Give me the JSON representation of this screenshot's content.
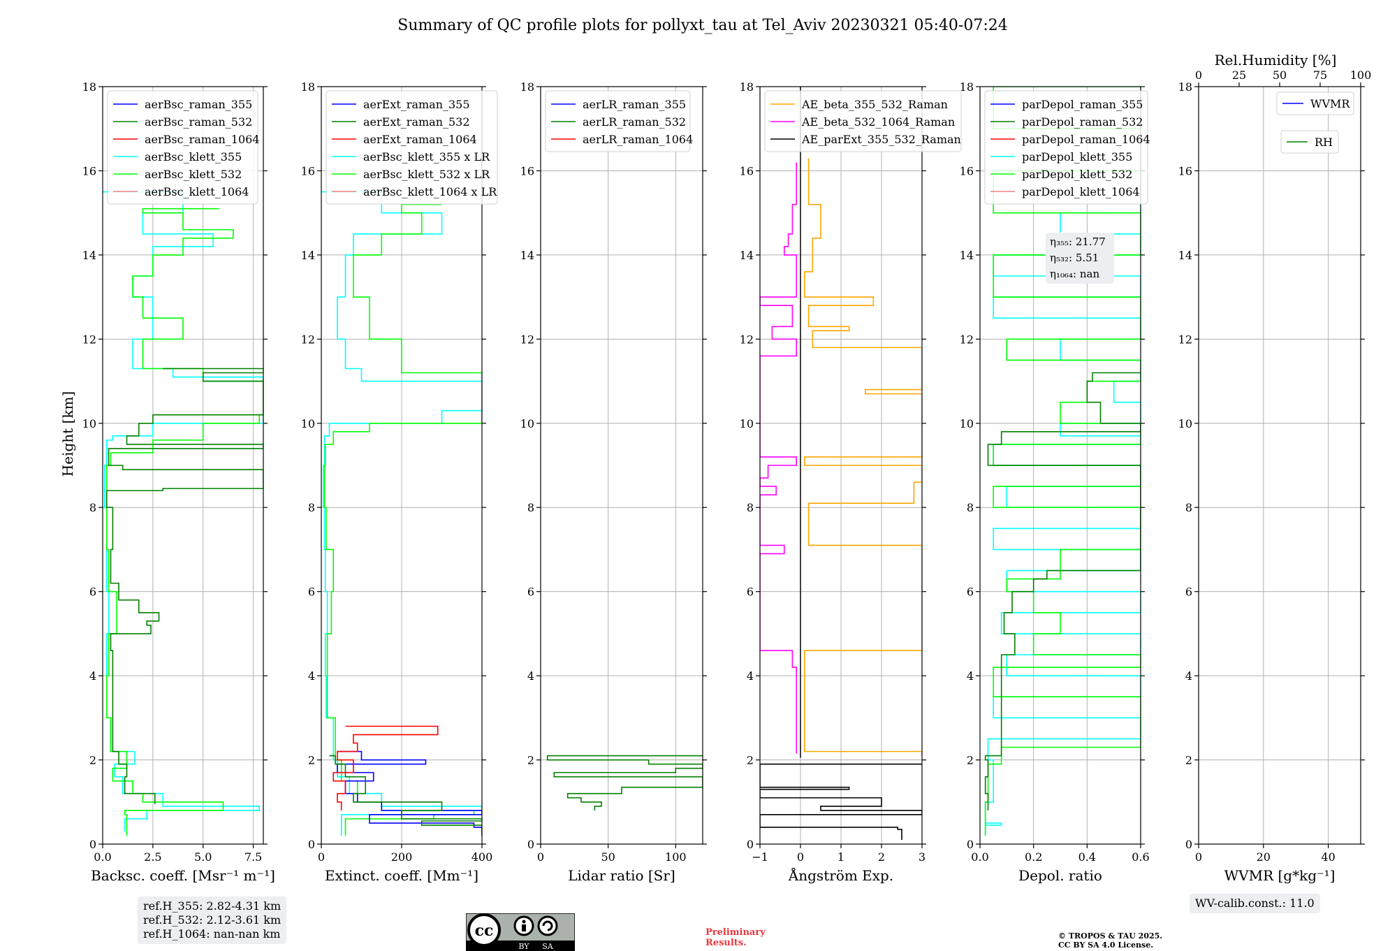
{
  "figure": {
    "title": "Summary of QC profile plots for pollyxt_tau at Tel_Aviv 20230321 05:40-07:24",
    "ylabel": "Height [km]",
    "ylim": [
      0,
      18
    ],
    "yticks": [
      0,
      2,
      4,
      6,
      8,
      10,
      12,
      14,
      16,
      18
    ]
  },
  "colors": {
    "blue": "#0000ff",
    "green": "#008000",
    "red": "#ff0000",
    "cyan": "#00ffff",
    "lime": "#00ff00",
    "salmon": "#f08080",
    "orange": "#ffa500",
    "magenta": "#ff00ff",
    "black": "#000000",
    "grid": "#b0b0b0"
  },
  "chart_data": [
    {
      "type": "line",
      "id": "bsc",
      "xlabel": "Backsc. coeff. [Msr⁻¹ m⁻¹]",
      "xlim": [
        0,
        8
      ],
      "xticks": [
        0,
        2.5,
        5,
        7.5
      ],
      "xticklabels": [
        "0.0",
        "2.5",
        "5.0",
        "7.5"
      ],
      "legend": [
        "aerBsc_raman_355",
        "aerBsc_raman_532",
        "aerBsc_raman_1064",
        "aerBsc_klett_355",
        "aerBsc_klett_532",
        "aerBsc_klett_1064"
      ],
      "legend_colors": [
        "blue",
        "green",
        "red",
        "cyan",
        "lime",
        "salmon"
      ],
      "series": [
        {
          "name": "aerBsc_klett_355",
          "color": "cyan",
          "h": [
            0.3,
            0.6,
            0.8,
            0.9,
            1.2,
            1.6,
            1.9,
            2.2,
            3,
            4,
            5,
            6,
            7,
            8,
            9,
            9.6,
            9.7,
            10,
            11.1,
            11.3,
            12,
            13,
            13.5,
            14.2,
            14.5,
            15,
            15.5
          ],
          "v": [
            1.1,
            2.2,
            7.8,
            3,
            1,
            0.6,
            1.6,
            0.4,
            0.2,
            0.2,
            0.3,
            0.2,
            0.2,
            0.1,
            0.2,
            0.5,
            2.5,
            8,
            3.5,
            1.5,
            2.5,
            1.5,
            2.5,
            5.5,
            2,
            4,
            0
          ]
        },
        {
          "name": "aerBsc_klett_532",
          "color": "lime",
          "h": [
            0.2,
            0.7,
            0.8,
            1,
            1.2,
            1.5,
            1.8,
            2.2,
            3,
            4,
            5,
            6,
            7,
            8,
            9,
            9.3,
            9.6,
            10,
            10.2,
            11,
            11.3,
            12,
            12.5,
            13,
            13.5,
            14,
            14.4,
            14.6,
            15,
            15.1
          ],
          "v": [
            1.2,
            1.1,
            6,
            2,
            1.5,
            0.5,
            1.2,
            0.4,
            0.2,
            0.3,
            0.7,
            0.3,
            0.2,
            0.2,
            0.4,
            2.5,
            5,
            7.8,
            8,
            5,
            2,
            4,
            2,
            1.5,
            2.5,
            4,
            6.5,
            4,
            2,
            5.8
          ]
        },
        {
          "name": "aerBsc_raman_532",
          "color": "green",
          "h": [
            0.95,
            1.2,
            1.6,
            1.9,
            2.2,
            4.6,
            5,
            5.2,
            5.3,
            5.5,
            5.8,
            6.2,
            7,
            8,
            8.4,
            8.45,
            8.9,
            9,
            9.4,
            9.5,
            9.7,
            10,
            10.2,
            10.6,
            11,
            11.2,
            11.3
          ],
          "v": [
            2.6,
            1.1,
            1.2,
            0.8,
            0.5,
            0.4,
            2.4,
            2.2,
            2.8,
            1.8,
            0.8,
            0.4,
            0.5,
            0.2,
            3,
            8,
            1,
            0.3,
            8,
            1.2,
            1.8,
            2.5,
            8,
            8,
            5,
            8,
            3
          ]
        }
      ]
    },
    {
      "type": "line",
      "id": "ext",
      "xlabel": "Extinct. coeff. [Mm⁻¹]",
      "xlim": [
        0,
        400
      ],
      "xticks": [
        0,
        200,
        400
      ],
      "xticklabels": [
        "0",
        "200",
        "400"
      ],
      "legend": [
        "aerExt_raman_355",
        "aerExt_raman_532",
        "aerExt_raman_1064",
        "aerBsc_klett_355 x LR",
        "aerBsc_klett_532 x LR",
        "aerBsc_klett_1064 x LR"
      ],
      "legend_colors": [
        "blue",
        "green",
        "red",
        "cyan",
        "lime",
        "salmon"
      ],
      "series": [
        {
          "name": "aerBsc_klett_355 x LR",
          "color": "cyan",
          "h": [
            0.2,
            0.7,
            0.8,
            0.9,
            1.2,
            1.6,
            2,
            3,
            4,
            5,
            6,
            7,
            8,
            9,
            9.7,
            10,
            10.3,
            11,
            11.3,
            12,
            13,
            14,
            14.5,
            15,
            15.5
          ],
          "v": [
            50,
            200,
            400,
            150,
            70,
            40,
            30,
            12,
            10,
            15,
            10,
            8,
            5,
            8,
            20,
            300,
            400,
            100,
            60,
            40,
            60,
            80,
            300,
            150,
            0
          ]
        },
        {
          "name": "aerBsc_klett_532 x LR",
          "color": "lime",
          "h": [
            0.2,
            0.6,
            0.7,
            0.8,
            1,
            1.5,
            2,
            3,
            5,
            6,
            7,
            8,
            9,
            9.5,
            9.8,
            10,
            11,
            11.2,
            12,
            13,
            14,
            14.5,
            15,
            15.2
          ],
          "v": [
            60,
            280,
            380,
            150,
            90,
            50,
            35,
            15,
            25,
            30,
            12,
            8,
            10,
            30,
            120,
            400,
            400,
            200,
            120,
            80,
            150,
            250,
            200,
            300
          ]
        },
        {
          "name": "aerExt_raman_355",
          "color": "blue",
          "h": [
            0.2,
            0.4,
            0.5,
            0.7,
            0.8,
            1,
            1.2,
            1.5,
            1.7,
            1.9,
            2,
            2.2
          ],
          "v": [
            400,
            380,
            120,
            400,
            150,
            90,
            60,
            130,
            40,
            260,
            100,
            40
          ]
        },
        {
          "name": "aerExt_raman_532",
          "color": "green",
          "h": [
            0.2,
            0.45,
            0.55,
            0.6,
            0.8,
            1,
            1.2,
            1.6,
            1.9,
            2.1
          ],
          "v": [
            400,
            250,
            400,
            200,
            300,
            80,
            110,
            60,
            35,
            20
          ]
        },
        {
          "name": "aerExt_raman_1064",
          "color": "red",
          "h": [
            0.8,
            1,
            1.2,
            1.5,
            1.7,
            2,
            2.2,
            2.4,
            2.6,
            2.8
          ],
          "v": [
            50,
            40,
            60,
            30,
            80,
            40,
            90,
            80,
            290,
            60
          ]
        }
      ]
    },
    {
      "type": "line",
      "id": "lr",
      "xlabel": "Lidar ratio [Sr]",
      "xlim": [
        0,
        120
      ],
      "xticks": [
        0,
        50,
        100
      ],
      "xticklabels": [
        "0",
        "50",
        "100"
      ],
      "legend": [
        "aerLR_raman_355",
        "aerLR_raman_532",
        "aerLR_raman_1064"
      ],
      "legend_colors": [
        "blue",
        "green",
        "red"
      ],
      "series": [
        {
          "name": "aerLR_raman_532",
          "color": "green",
          "h": [
            0.8,
            0.9,
            1,
            1.1,
            1.2,
            1.35,
            1.5,
            1.6,
            1.7,
            1.8,
            1.9,
            2,
            2.1
          ],
          "v": [
            40,
            45,
            30,
            20,
            60,
            120,
            120,
            10,
            100,
            120,
            80,
            5,
            120
          ]
        }
      ]
    },
    {
      "type": "line",
      "id": "ae",
      "xlabel": "Ångström Exp.",
      "xlim": [
        -1,
        3
      ],
      "xticks": [
        -1,
        0,
        1,
        2,
        3
      ],
      "xticklabels": [
        "−1",
        "0",
        "1",
        "2",
        "3"
      ],
      "legend": [
        "AE_beta_355_532_Raman",
        "AE_beta_532_1064_Raman",
        "AE_parExt_355_532_Raman"
      ],
      "legend_colors": [
        "orange",
        "magenta",
        "black"
      ],
      "series": [
        {
          "name": "AE_beta_355_532_Raman",
          "color": "orange",
          "h": [
            2.1,
            2.2,
            4.6,
            6.4,
            6.9,
            7.1,
            7.9,
            8.1,
            8.6,
            8.8,
            9,
            9.2,
            10.7,
            10.8,
            11.3,
            11.8,
            12.2,
            12.3,
            12.8,
            13,
            13.6,
            14.4,
            15.2,
            16.3
          ],
          "v": [
            3,
            0.1,
            3,
            3,
            3,
            0.2,
            0.2,
            2.8,
            3,
            3,
            0.1,
            3,
            1.6,
            3,
            3,
            0.3,
            1.2,
            0.2,
            1.8,
            0.1,
            0.3,
            0.5,
            0.2,
            0.2
          ]
        },
        {
          "name": "AE_beta_532_1064_Raman",
          "color": "magenta",
          "h": [
            2.15,
            4.2,
            4.6,
            6.9,
            7.1,
            8,
            8.3,
            8.5,
            8.7,
            9,
            9.2,
            10.8,
            11.3,
            11.6,
            12,
            12.3,
            12.8,
            13,
            14,
            14.2,
            14.5,
            15.2,
            16.2
          ],
          "v": [
            -0.1,
            -0.2,
            -1,
            -0.4,
            -1,
            -1,
            -0.6,
            -1,
            -0.8,
            -0.1,
            -1,
            -1,
            -1,
            -0.1,
            -0.7,
            -0.2,
            -1,
            -0.1,
            -0.4,
            -0.3,
            -0.2,
            -0.1,
            -0.1
          ]
        },
        {
          "name": "AE_parExt_355_532_Raman",
          "color": "black",
          "h": [
            0.1,
            0.35,
            0.4,
            0.7,
            0.8,
            0.9,
            1.1,
            1.3,
            1.35,
            1.55,
            1.75,
            1.9
          ],
          "v": [
            2.5,
            2.4,
            -1,
            3,
            0.5,
            2,
            -1,
            1.2,
            -1,
            -1,
            -1,
            3
          ]
        }
      ]
    },
    {
      "type": "line",
      "id": "dep",
      "xlabel": "Depol. ratio",
      "xlim": [
        0,
        0.6
      ],
      "xticks": [
        0,
        0.2,
        0.4,
        0.6
      ],
      "xticklabels": [
        "0.0",
        "0.2",
        "0.4",
        "0.6"
      ],
      "legend": [
        "parDepol_raman_355",
        "parDepol_raman_532",
        "parDepol_raman_1064",
        "parDepol_klett_355",
        "parDepol_klett_532",
        "parDepol_klett_1064"
      ],
      "legend_colors": [
        "blue",
        "green",
        "red",
        "cyan",
        "lime",
        "salmon"
      ],
      "series": [
        {
          "name": "parDepol_klett_355",
          "color": "cyan",
          "h": [
            0.2,
            0.45,
            0.5,
            1,
            2,
            2.5,
            3,
            3.5,
            4,
            4.5,
            5,
            5.5,
            6,
            6.5,
            7,
            7.5,
            8,
            8.5,
            9,
            9.5,
            9.7,
            10,
            10.5,
            11,
            11.5,
            12,
            12.5,
            13,
            13.5,
            14,
            14.5,
            15,
            16
          ],
          "v": [
            0.02,
            0.08,
            0.02,
            0.05,
            0.03,
            0.6,
            0.05,
            0.6,
            0.1,
            0.6,
            0.08,
            0.6,
            0.1,
            0.6,
            0.05,
            0.6,
            0.1,
            0.6,
            0.05,
            0.6,
            0.3,
            0.6,
            0.5,
            0.6,
            0.3,
            0.6,
            0.05,
            0.6,
            0.05,
            0.6,
            0.3,
            0.6,
            0.55
          ]
        },
        {
          "name": "parDepol_klett_532",
          "color": "lime",
          "h": [
            0.2,
            1,
            1.9,
            2.3,
            3.5,
            4.2,
            4.5,
            5,
            5.5,
            6,
            6.3,
            7,
            8,
            8.5,
            9,
            9.5,
            10,
            10.5,
            11,
            11.5,
            12,
            13,
            14,
            15,
            16,
            17,
            18
          ],
          "v": [
            0.02,
            0.03,
            0.08,
            0.6,
            0.05,
            0.6,
            0.2,
            0.3,
            0.2,
            0.1,
            0.3,
            0.6,
            0.05,
            0.6,
            0.05,
            0.6,
            0.3,
            0.4,
            0.6,
            0.1,
            0.6,
            0.05,
            0.6,
            0.05,
            0.6,
            0.05,
            0.6
          ]
        },
        {
          "name": "parDepol_raman_532",
          "color": "green",
          "h": [
            0.8,
            1.2,
            1.6,
            2,
            2.1,
            4.5,
            5,
            5.5,
            6,
            6.3,
            6.5,
            9,
            9.5,
            9.8,
            10,
            10.5,
            11,
            11.2
          ],
          "v": [
            0.03,
            0.02,
            0.03,
            0.02,
            0.08,
            0.13,
            0.09,
            0.12,
            0.2,
            0.25,
            0.6,
            0.03,
            0.08,
            0.6,
            0.45,
            0.4,
            0.42,
            0.6
          ]
        }
      ]
    },
    {
      "type": "line",
      "id": "wv",
      "xlabel": "WVMR [g*kg⁻¹]",
      "xlim": [
        0,
        50
      ],
      "xticks": [
        0,
        20,
        40
      ],
      "xticklabels": [
        "0",
        "20",
        "40"
      ],
      "top_axis": {
        "label": "Rel.Humidity [%]",
        "xlim": [
          0,
          100
        ],
        "xticks": [
          0,
          25,
          50,
          75,
          100
        ],
        "xticklabels": [
          "0",
          "25",
          "50",
          "75",
          "100"
        ]
      },
      "legend": [
        "WVMR",
        "RH"
      ],
      "legend_colors": [
        "blue",
        "green"
      ],
      "series": []
    }
  ],
  "annotations": {
    "eta": [
      "η₃₅₅: 21.77",
      "η₅₃₂: 5.51",
      "η₁₀₆₄: nan"
    ],
    "ref_heights": [
      "ref.H_355: 2.82-4.31 km",
      "ref.H_532: 2.12-3.61 km",
      "ref.H_1064: nan-nan km"
    ],
    "wv_calib": "WV-calib.const.: 11.0",
    "preliminary": [
      "Preliminary",
      "Results."
    ],
    "copyright": [
      "© TROPOS & TAU 2025.",
      "CC BY SA 4.0 License."
    ],
    "cc_badge": {
      "top": "cc",
      "by": "BY",
      "sa": "SA"
    }
  }
}
